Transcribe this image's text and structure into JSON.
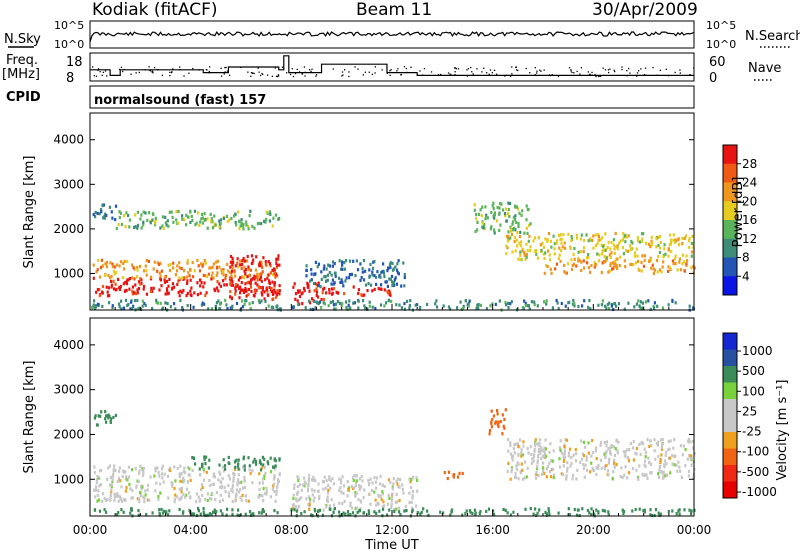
{
  "header": {
    "station": "Kodiak (fitACF)",
    "beam": "Beam 11",
    "date": "30/Apr/2009"
  },
  "top_panels": {
    "nsky_label": "N.Sky",
    "nsearch_label": "N.Search",
    "nsky_ticks": [
      "10^5",
      "10^0"
    ],
    "nsearch_ticks": [
      "10^5",
      "10^0"
    ],
    "freq_label_1": "Freq.",
    "freq_label_2": "[MHz]",
    "freq_ticks": [
      "18",
      "8"
    ],
    "nave_label": "Nave",
    "nave_ticks": [
      "60",
      "0"
    ],
    "cpid_label": "CPID",
    "cpid_text": "normalsound (fast) 157"
  },
  "colors": {
    "power_scale": [
      "#0a14e6",
      "#2255b4",
      "#3c8c78",
      "#5ab45a",
      "#e6cc1e",
      "#f0961e",
      "#f05a14",
      "#e81414"
    ],
    "velocity_scale": [
      "#1428d2",
      "#2850a0",
      "#3c8c5a",
      "#78d23c",
      "#c8c8c8",
      "#c8c8c8",
      "#f0a01e",
      "#f06414",
      "#f02814",
      "#e60000"
    ],
    "ground_gray": "#c8c8c8"
  },
  "chart_data": [
    {
      "type": "heatmap",
      "name": "Power",
      "ylabel": "Slant Range [km]",
      "xlabel": "Time UT",
      "xlim_hours": [
        0,
        24
      ],
      "ylim": [
        180,
        4600
      ],
      "yticks": [
        1000,
        2000,
        3000,
        4000
      ],
      "xticks": [
        "00:00",
        "04:00",
        "08:00",
        "12:00",
        "16:00",
        "20:00",
        "00:00"
      ],
      "colorbar": {
        "label": "Power [dB]",
        "ticks": [
          4,
          8,
          12,
          16,
          20,
          24,
          28
        ],
        "range": [
          0,
          32
        ]
      },
      "echo_regions": [
        {
          "t": [
            0.1,
            7.5
          ],
          "r": [
            500,
            900
          ],
          "value": 30
        },
        {
          "t": [
            0.1,
            7.5
          ],
          "r": [
            900,
            1300
          ],
          "value": 22
        },
        {
          "t": [
            5.5,
            7.5
          ],
          "r": [
            400,
            1400
          ],
          "value": 30
        },
        {
          "t": [
            8.0,
            9.3
          ],
          "r": [
            280,
            800
          ],
          "value": 30
        },
        {
          "t": [
            9.3,
            12.0
          ],
          "r": [
            500,
            700
          ],
          "value": 30
        },
        {
          "t": [
            8.5,
            12.5
          ],
          "r": [
            700,
            1300
          ],
          "value": 8
        },
        {
          "t": [
            0.1,
            1.0
          ],
          "r": [
            2200,
            2600
          ],
          "value": 8
        },
        {
          "t": [
            1.0,
            7.5
          ],
          "r": [
            2000,
            2400
          ],
          "value": 14
        },
        {
          "t": [
            15.2,
            17.5
          ],
          "r": [
            1900,
            2600
          ],
          "value": 14
        },
        {
          "t": [
            16.5,
            24.0
          ],
          "r": [
            1300,
            1900
          ],
          "value": 18
        },
        {
          "t": [
            18.0,
            24.0
          ],
          "r": [
            1000,
            1300
          ],
          "value": 22
        },
        {
          "t": [
            0.0,
            24.0
          ],
          "r": [
            180,
            400
          ],
          "value": 10
        }
      ]
    },
    {
      "type": "heatmap",
      "name": "Velocity",
      "ylabel": "Slant Range [km]",
      "xlabel": "Time UT",
      "xlim_hours": [
        0,
        24
      ],
      "ylim": [
        180,
        4600
      ],
      "yticks": [
        1000,
        2000,
        3000,
        4000
      ],
      "xticks": [
        "00:00",
        "04:00",
        "08:00",
        "12:00",
        "16:00",
        "20:00",
        "00:00"
      ],
      "colorbar": {
        "label": "Velocity [m s⁻¹]",
        "ticks": [
          1000,
          500,
          100,
          25,
          -25,
          -100,
          -500,
          -1000
        ]
      },
      "echo_regions": [
        {
          "t": [
            0.1,
            7.5
          ],
          "r": [
            500,
            1300
          ],
          "value": 0
        },
        {
          "t": [
            4.0,
            7.5
          ],
          "r": [
            1200,
            1500
          ],
          "value": 150
        },
        {
          "t": [
            8.0,
            13.0
          ],
          "r": [
            300,
            1100
          ],
          "value": 0
        },
        {
          "t": [
            14.0,
            14.8
          ],
          "r": [
            1000,
            1200
          ],
          "value": -150
        },
        {
          "t": [
            15.8,
            16.5
          ],
          "r": [
            2000,
            2600
          ],
          "value": -150
        },
        {
          "t": [
            16.5,
            24.0
          ],
          "r": [
            1000,
            1900
          ],
          "value": 0
        },
        {
          "t": [
            0.1,
            1.0
          ],
          "r": [
            2200,
            2600
          ],
          "value": 150
        },
        {
          "t": [
            0.0,
            24.0
          ],
          "r": [
            180,
            350
          ],
          "value": 150
        }
      ]
    }
  ]
}
